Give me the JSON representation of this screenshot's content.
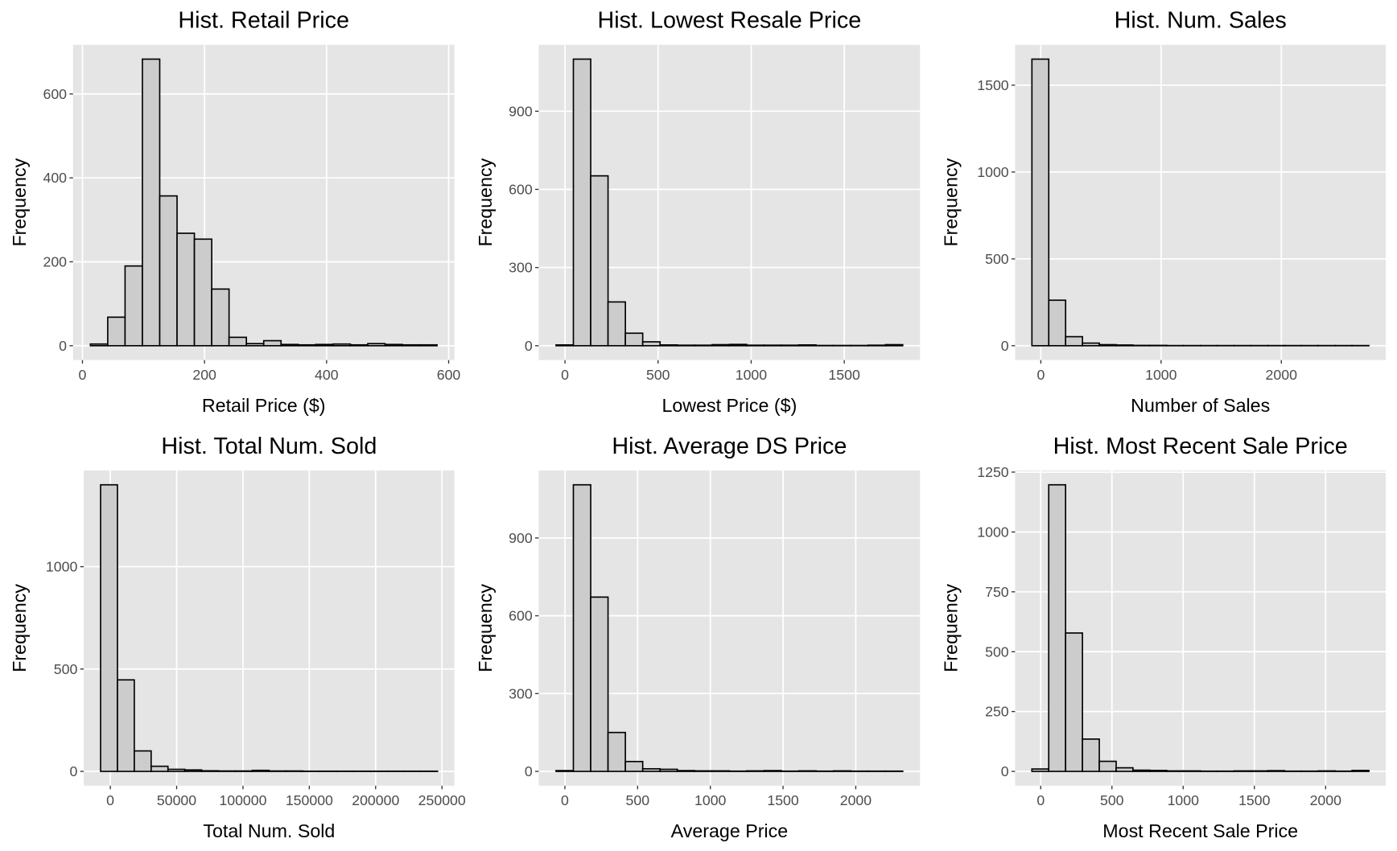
{
  "chart_data": [
    {
      "type": "histogram",
      "title": "Hist. Retail Price",
      "xlabel": "Retail Price ($)",
      "ylabel": "Frequency",
      "bins": [
        13,
        41.4,
        69.8,
        98.2,
        126.6,
        155,
        183.4,
        211.8,
        240.2,
        268.6,
        297,
        325.4,
        353.8,
        382.2,
        410.6,
        439,
        467.4,
        495.8,
        524.2,
        552.6,
        581
      ],
      "values": [
        4,
        68,
        190,
        683,
        357,
        268,
        254,
        135,
        20,
        5,
        12,
        3,
        2,
        3,
        4,
        2,
        5,
        3,
        2,
        2
      ],
      "color": "#cccccc",
      "edgecolor": "#000000",
      "grid": true,
      "xlim": [
        -15.4,
        609.4
      ],
      "xticks": [
        0,
        200,
        400,
        600
      ],
      "ylim": [
        -34.15,
        717.15
      ],
      "yticks": [
        0,
        200,
        400,
        600
      ]
    },
    {
      "type": "histogram",
      "title": "Hist. Lowest Resale Price",
      "xlabel": "Lowest Price ($)",
      "ylabel": "Frequency",
      "bins": [
        -48,
        45.1,
        138.2,
        231.3,
        324.4,
        417.5,
        510.6,
        603.7,
        696.8,
        789.9,
        883,
        976.1,
        1069.2,
        1162.3,
        1255.4,
        1348.5,
        1441.6,
        1534.7,
        1627.8,
        1720.9,
        1814
      ],
      "values": [
        3,
        1100,
        652,
        168,
        48,
        15,
        3,
        2,
        2,
        4,
        5,
        2,
        2,
        2,
        3,
        1,
        1,
        1,
        2,
        4
      ],
      "color": "#cccccc",
      "edgecolor": "#000000",
      "grid": true,
      "xlim": [
        -141,
        1907
      ],
      "xticks": [
        0,
        500,
        1000,
        1500
      ],
      "ylim": [
        -55,
        1155
      ],
      "yticks": [
        0,
        300,
        600,
        900
      ]
    },
    {
      "type": "histogram",
      "title": "Hist. Num. Sales",
      "xlabel": "Number of Sales",
      "ylabel": "Frequency",
      "bins": [
        -74,
        66.1,
        206.2,
        346.3,
        486.4,
        626.5,
        766.6,
        906.7,
        1046.8,
        1186.9,
        1327,
        1467.1,
        1607.2,
        1747.3,
        1887.4,
        2027.5,
        2167.6,
        2307.7,
        2447.8,
        2587.9,
        2728
      ],
      "values": [
        1650,
        262,
        52,
        15,
        6,
        4,
        2,
        2,
        1,
        1,
        1,
        1,
        1,
        1,
        1,
        1,
        1,
        1,
        1,
        1
      ],
      "color": "#cccccc",
      "edgecolor": "#000000",
      "grid": true,
      "xlim": [
        -214,
        2868
      ],
      "xticks": [
        0,
        1000,
        2000
      ],
      "ylim": [
        -82.5,
        1732.5
      ],
      "yticks": [
        0,
        500,
        1000,
        1500
      ]
    },
    {
      "type": "histogram",
      "title": "Hist. Total Num. Sold",
      "xlabel": "Total Num. Sold",
      "ylabel": "Frequency",
      "bins": [
        -7333,
        5367,
        18067,
        30767,
        43467,
        56167,
        68867,
        81567,
        94267,
        106967,
        119667,
        132367,
        145067,
        157767,
        170467,
        183167,
        195867,
        208567,
        221267,
        233967,
        246667
      ],
      "values": [
        1400,
        447,
        100,
        25,
        10,
        7,
        3,
        2,
        2,
        5,
        2,
        2,
        1,
        1,
        1,
        1,
        1,
        1,
        1,
        1
      ],
      "color": "#cccccc",
      "edgecolor": "#000000",
      "grid": true,
      "xlim": [
        -20033,
        259367
      ],
      "xticks": [
        0,
        50000,
        100000,
        150000,
        200000,
        250000
      ],
      "ylim": [
        -70,
        1470
      ],
      "yticks": [
        0,
        500,
        1000
      ]
    },
    {
      "type": "histogram",
      "title": "Hist. Average DS Price",
      "xlabel": "Average Price",
      "ylabel": "Frequency",
      "bins": [
        -61,
        58.2,
        177.4,
        296.6,
        415.8,
        535,
        654.2,
        773.4,
        892.6,
        1011.8,
        1131,
        1250.2,
        1369.4,
        1488.6,
        1607.8,
        1727,
        1846.2,
        1965.4,
        2084.6,
        2203.8,
        2323
      ],
      "values": [
        3,
        1105,
        672,
        150,
        38,
        10,
        8,
        3,
        2,
        2,
        1,
        2,
        3,
        1,
        2,
        1,
        2,
        1,
        1,
        1
      ],
      "color": "#cccccc",
      "edgecolor": "#000000",
      "grid": true,
      "xlim": [
        -180,
        2442
      ],
      "xticks": [
        0,
        500,
        1000,
        1500,
        2000
      ],
      "ylim": [
        -55.25,
        1160.25
      ],
      "yticks": [
        0,
        300,
        600,
        900
      ]
    },
    {
      "type": "histogram",
      "title": "Hist. Most Recent Sale Price",
      "xlabel": "Most Recent Sale Price",
      "ylabel": "Frequency",
      "bins": [
        -62,
        56.3,
        174.6,
        292.9,
        411.2,
        529.5,
        647.8,
        766.1,
        884.4,
        1002.7,
        1121,
        1239.3,
        1357.6,
        1475.9,
        1594.2,
        1712.5,
        1830.8,
        1949.1,
        2067.4,
        2185.7,
        2304
      ],
      "values": [
        10,
        1197,
        578,
        135,
        42,
        15,
        5,
        4,
        2,
        2,
        1,
        1,
        2,
        2,
        3,
        1,
        1,
        2,
        1,
        4
      ],
      "color": "#cccccc",
      "edgecolor": "#000000",
      "grid": true,
      "xlim": [
        -180,
        2422
      ],
      "xticks": [
        0,
        500,
        1000,
        1500,
        2000
      ],
      "ylim": [
        -59.85,
        1256.85
      ],
      "yticks": [
        0,
        250,
        500,
        750,
        1000,
        1250
      ]
    }
  ]
}
